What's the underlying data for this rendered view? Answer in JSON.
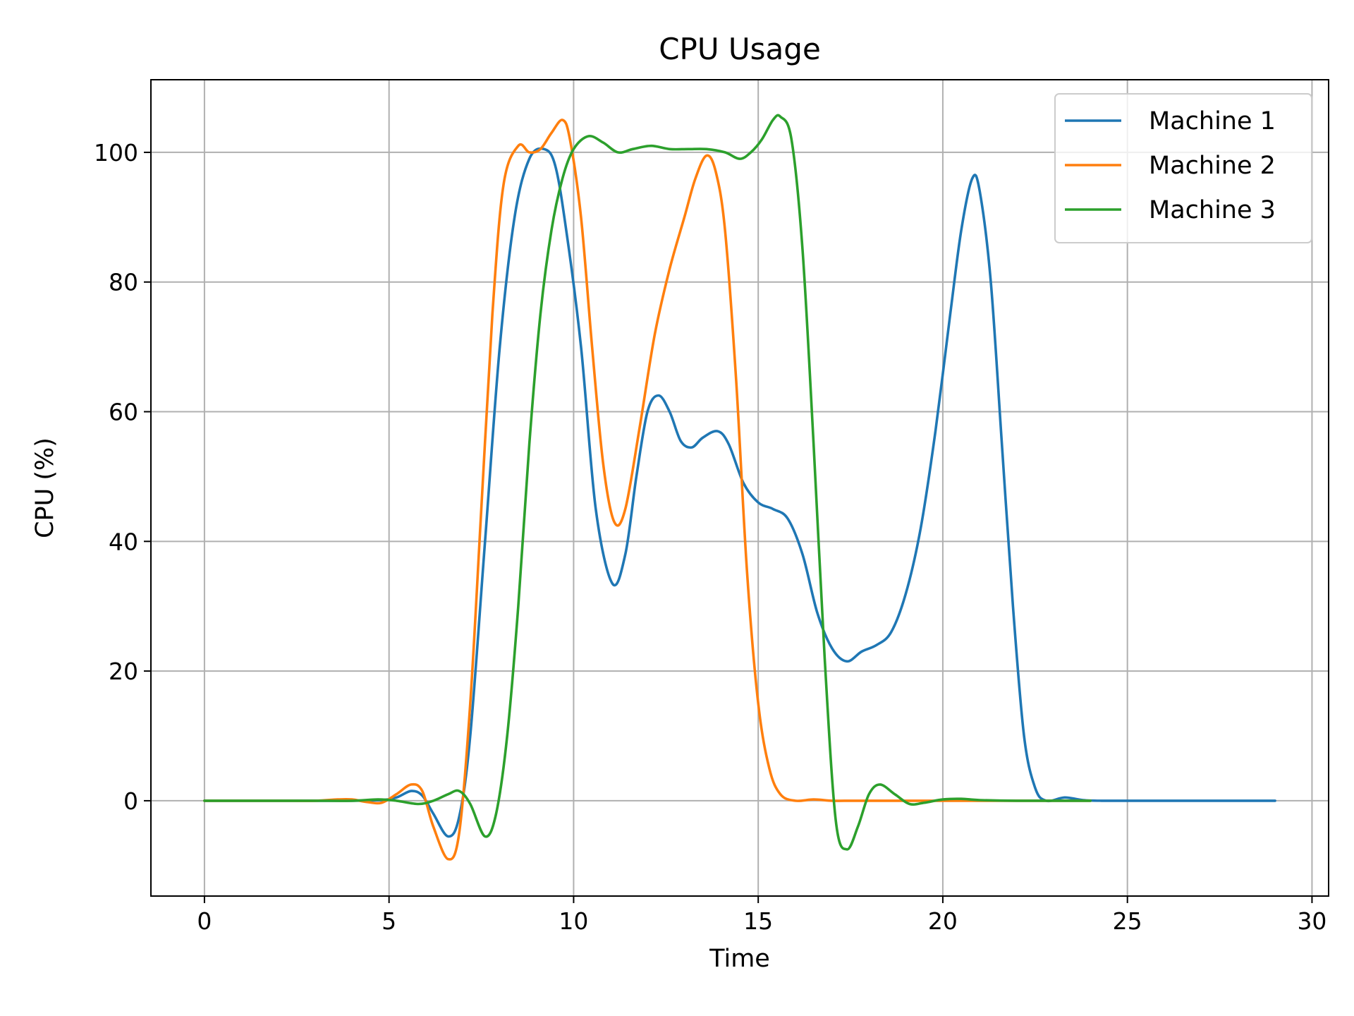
{
  "chart_data": {
    "type": "line",
    "title": "CPU Usage",
    "xlabel": "Time",
    "ylabel": "CPU (%)",
    "xlim": [
      -1.45,
      30.45
    ],
    "ylim": [
      -14.7,
      111.2
    ],
    "xticks": [
      0,
      5,
      10,
      15,
      20,
      25,
      30
    ],
    "yticks": [
      0,
      20,
      40,
      60,
      80,
      100
    ],
    "grid": true,
    "legend_position": "top-right",
    "series": [
      {
        "name": "Machine 1",
        "color": "#1f77b4",
        "points": [
          [
            0,
            0
          ],
          [
            1,
            0
          ],
          [
            2,
            0
          ],
          [
            3,
            0
          ],
          [
            4,
            0
          ],
          [
            4.8,
            0.1
          ],
          [
            5.2,
            0.5
          ],
          [
            5.6,
            1.5
          ],
          [
            5.9,
            0.8
          ],
          [
            6.2,
            -2
          ],
          [
            6.6,
            -5.5
          ],
          [
            6.9,
            -2.5
          ],
          [
            7.2,
            10
          ],
          [
            7.6,
            40
          ],
          [
            8,
            70
          ],
          [
            8.4,
            90
          ],
          [
            8.8,
            99
          ],
          [
            9.2,
            100.5
          ],
          [
            9.5,
            98
          ],
          [
            9.8,
            88
          ],
          [
            10.2,
            70
          ],
          [
            10.6,
            45
          ],
          [
            11.05,
            33.5
          ],
          [
            11.4,
            38
          ],
          [
            11.7,
            50
          ],
          [
            12,
            60
          ],
          [
            12.3,
            62.5
          ],
          [
            12.6,
            60
          ],
          [
            12.9,
            55.5
          ],
          [
            13.2,
            54.5
          ],
          [
            13.5,
            56
          ],
          [
            13.9,
            57
          ],
          [
            14.2,
            55
          ],
          [
            14.6,
            49
          ],
          [
            15,
            46
          ],
          [
            15.4,
            45
          ],
          [
            15.8,
            43.5
          ],
          [
            16.2,
            38
          ],
          [
            16.6,
            29
          ],
          [
            17,
            23.5
          ],
          [
            17.4,
            21.5
          ],
          [
            17.8,
            23
          ],
          [
            18.2,
            24
          ],
          [
            18.6,
            26
          ],
          [
            19,
            32
          ],
          [
            19.4,
            42
          ],
          [
            19.8,
            57
          ],
          [
            20.2,
            75
          ],
          [
            20.5,
            88
          ],
          [
            20.8,
            96
          ],
          [
            21,
            94
          ],
          [
            21.3,
            80
          ],
          [
            21.6,
            55
          ],
          [
            21.9,
            30
          ],
          [
            22.2,
            10
          ],
          [
            22.5,
            2
          ],
          [
            22.8,
            0
          ],
          [
            23.3,
            0.5
          ],
          [
            23.8,
            0.1
          ],
          [
            24.3,
            0
          ],
          [
            25,
            0
          ],
          [
            26,
            0
          ],
          [
            27,
            0
          ],
          [
            28,
            0
          ],
          [
            29,
            0
          ]
        ]
      },
      {
        "name": "Machine 2",
        "color": "#ff7f0e",
        "points": [
          [
            0,
            0
          ],
          [
            1,
            0
          ],
          [
            2,
            0
          ],
          [
            3,
            0
          ],
          [
            3.6,
            0.2
          ],
          [
            4,
            0.2
          ],
          [
            4.4,
            -0.2
          ],
          [
            4.8,
            -0.3
          ],
          [
            5.2,
            1
          ],
          [
            5.6,
            2.5
          ],
          [
            5.9,
            1.5
          ],
          [
            6.2,
            -4
          ],
          [
            6.6,
            -9
          ],
          [
            6.9,
            -5
          ],
          [
            7.2,
            15
          ],
          [
            7.5,
            45
          ],
          [
            7.8,
            75
          ],
          [
            8.1,
            95
          ],
          [
            8.5,
            101
          ],
          [
            8.8,
            100
          ],
          [
            9.1,
            100.5
          ],
          [
            9.4,
            103
          ],
          [
            9.7,
            105
          ],
          [
            9.9,
            102
          ],
          [
            10.2,
            90
          ],
          [
            10.5,
            70
          ],
          [
            10.8,
            52
          ],
          [
            11.1,
            43
          ],
          [
            11.4,
            45
          ],
          [
            11.8,
            58
          ],
          [
            12.2,
            72
          ],
          [
            12.6,
            82
          ],
          [
            13,
            90
          ],
          [
            13.3,
            96
          ],
          [
            13.6,
            99.5
          ],
          [
            13.85,
            97
          ],
          [
            14.1,
            88
          ],
          [
            14.4,
            65
          ],
          [
            14.7,
            35
          ],
          [
            15,
            15
          ],
          [
            15.3,
            5
          ],
          [
            15.6,
            1
          ],
          [
            16,
            0
          ],
          [
            16.5,
            0.2
          ],
          [
            17,
            0
          ],
          [
            17.5,
            0
          ],
          [
            18,
            0
          ],
          [
            19,
            0
          ],
          [
            20,
            0
          ],
          [
            21,
            0
          ],
          [
            22,
            0
          ],
          [
            23,
            0
          ],
          [
            24,
            0
          ]
        ]
      },
      {
        "name": "Machine 3",
        "color": "#2ca02c",
        "points": [
          [
            0,
            0
          ],
          [
            1,
            0
          ],
          [
            2,
            0
          ],
          [
            3,
            0
          ],
          [
            4,
            0
          ],
          [
            4.7,
            0.2
          ],
          [
            5.2,
            0
          ],
          [
            5.8,
            -0.5
          ],
          [
            6.2,
            0
          ],
          [
            6.6,
            1
          ],
          [
            6.9,
            1.5
          ],
          [
            7.2,
            -0.5
          ],
          [
            7.6,
            -5.5
          ],
          [
            7.9,
            -2
          ],
          [
            8.2,
            10
          ],
          [
            8.5,
            30
          ],
          [
            8.8,
            55
          ],
          [
            9.1,
            75
          ],
          [
            9.4,
            88
          ],
          [
            9.7,
            96
          ],
          [
            10,
            100.5
          ],
          [
            10.4,
            102.5
          ],
          [
            10.8,
            101.5
          ],
          [
            11.2,
            100
          ],
          [
            11.6,
            100.5
          ],
          [
            12.1,
            101
          ],
          [
            12.6,
            100.5
          ],
          [
            13.1,
            100.5
          ],
          [
            13.6,
            100.5
          ],
          [
            14.1,
            100
          ],
          [
            14.5,
            99
          ],
          [
            14.8,
            100
          ],
          [
            15.1,
            102
          ],
          [
            15.4,
            105
          ],
          [
            15.6,
            105.5
          ],
          [
            15.9,
            102
          ],
          [
            16.2,
            85
          ],
          [
            16.5,
            55
          ],
          [
            16.8,
            22
          ],
          [
            17.1,
            -3
          ],
          [
            17.4,
            -7.5
          ],
          [
            17.7,
            -4
          ],
          [
            18,
            1
          ],
          [
            18.3,
            2.5
          ],
          [
            18.7,
            1
          ],
          [
            19.1,
            -0.5
          ],
          [
            19.5,
            -0.3
          ],
          [
            20,
            0.2
          ],
          [
            20.5,
            0.3
          ],
          [
            21,
            0.1
          ],
          [
            22,
            0
          ],
          [
            23,
            0
          ],
          [
            24,
            0
          ]
        ]
      }
    ]
  }
}
